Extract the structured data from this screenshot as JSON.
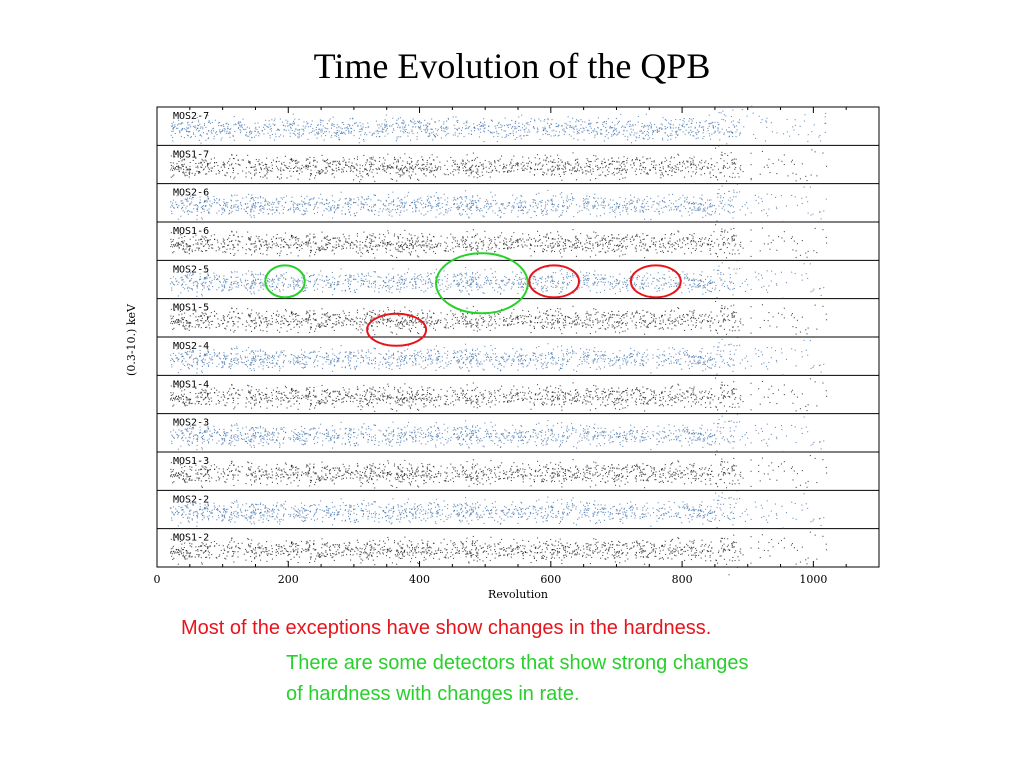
{
  "slide": {
    "title": "Time Evolution of the QPB",
    "note_red": "Most of the exceptions have show changes in the hardness.",
    "note_green_line1": "There are some detectors that show strong changes",
    "note_green_line2": "of hardness with changes in rate."
  },
  "colors": {
    "mos2_points": "#3d6fa8",
    "mos1_points": "#1a1a1a",
    "exception_circle": "#e8141b",
    "rate_change_circle": "#27d02a",
    "note_red": "#e8141b",
    "note_green": "#27d02a"
  },
  "chart_data": {
    "type": "scatter",
    "xlabel": "Revolution",
    "ylabel": "(0.3-10.) keV",
    "xlim": [
      0,
      1100
    ],
    "x_ticks": [
      0,
      200,
      400,
      600,
      800,
      1000
    ],
    "panels": [
      {
        "name": "MOS2-7",
        "color": "mos2_points"
      },
      {
        "name": "MOS1-7",
        "color": "mos1_points"
      },
      {
        "name": "MOS2-6",
        "color": "mos2_points"
      },
      {
        "name": "MOS1-6",
        "color": "mos1_points"
      },
      {
        "name": "MOS2-5",
        "color": "mos2_points"
      },
      {
        "name": "MOS1-5",
        "color": "mos1_points"
      },
      {
        "name": "MOS2-4",
        "color": "mos2_points"
      },
      {
        "name": "MOS1-4",
        "color": "mos1_points"
      },
      {
        "name": "MOS2-3",
        "color": "mos2_points"
      },
      {
        "name": "MOS1-3",
        "color": "mos1_points"
      },
      {
        "name": "MOS2-2",
        "color": "mos2_points"
      },
      {
        "name": "MOS1-2",
        "color": "mos1_points"
      }
    ],
    "annotations": [
      {
        "panel": "MOS2-5",
        "x_center": 195,
        "x_halfwidth": 30,
        "color": "rate_change_circle"
      },
      {
        "panel": "MOS2-5",
        "x_center": 495,
        "x_halfwidth": 70,
        "color": "rate_change_circle"
      },
      {
        "panel": "MOS2-5",
        "x_center": 605,
        "x_halfwidth": 38,
        "color": "exception_circle"
      },
      {
        "panel": "MOS2-5",
        "x_center": 760,
        "x_halfwidth": 38,
        "color": "exception_circle"
      },
      {
        "panel": "MOS1-5",
        "x_center": 365,
        "x_halfwidth": 45,
        "color": "exception_circle"
      }
    ]
  }
}
